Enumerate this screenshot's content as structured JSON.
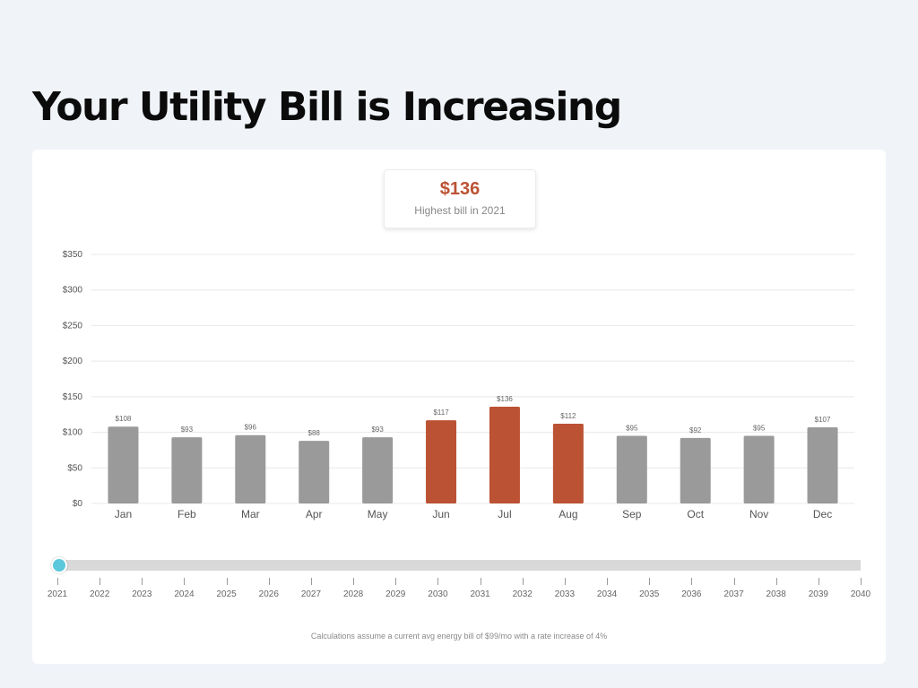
{
  "page": {
    "title": "Your Utility Bill is Increasing"
  },
  "highlight": {
    "value": "$136",
    "label": "Highest bill in 2021"
  },
  "chart_data": {
    "type": "bar",
    "categories": [
      "Jan",
      "Feb",
      "Mar",
      "Apr",
      "May",
      "Jun",
      "Jul",
      "Aug",
      "Sep",
      "Oct",
      "Nov",
      "Dec"
    ],
    "values": [
      108,
      93,
      96,
      88,
      93,
      117,
      136,
      112,
      95,
      92,
      95,
      107
    ],
    "value_labels": [
      "$108",
      "$93",
      "$96",
      "$88",
      "$93",
      "$117",
      "$136",
      "$112",
      "$95",
      "$92",
      "$95",
      "$107"
    ],
    "highlighted_months": [
      "Jun",
      "Jul",
      "Aug"
    ],
    "ylim": [
      0,
      350
    ],
    "yticks": [
      0,
      50,
      100,
      150,
      200,
      250,
      300,
      350
    ],
    "ytick_labels": [
      "$0",
      "$50",
      "$100",
      "$150",
      "$200",
      "$250",
      "$300",
      "$350"
    ],
    "grid": true,
    "colors": {
      "default_bar": "#9a9a9a",
      "highlight_bar": "#bc5234",
      "grid": "#e8e8e8"
    }
  },
  "slider": {
    "years": [
      "2021",
      "2022",
      "2023",
      "2024",
      "2025",
      "2026",
      "2027",
      "2028",
      "2029",
      "2030",
      "2031",
      "2032",
      "2033",
      "2034",
      "2035",
      "2036",
      "2037",
      "2038",
      "2039",
      "2040"
    ],
    "selected": "2021",
    "thumb_color": "#5bc8dc"
  },
  "footnote": "Calculations assume a current avg energy bill of $99/mo with a rate increase of 4%"
}
